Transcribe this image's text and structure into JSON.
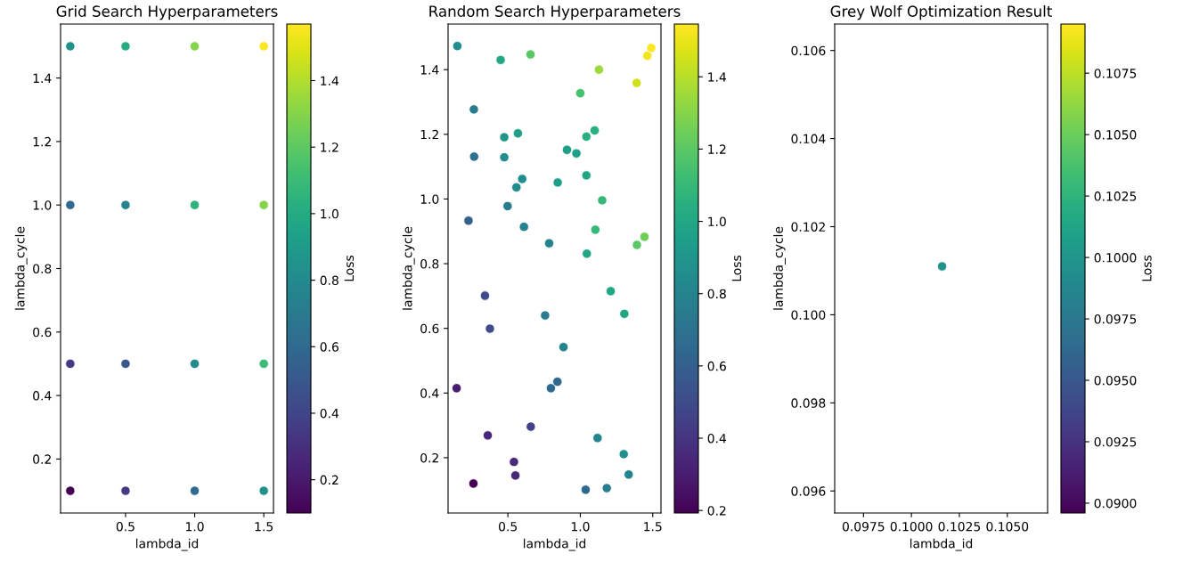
{
  "chart_data": [
    {
      "type": "scatter",
      "title": "Grid Search Hyperparameters",
      "xlabel": "lambda_id",
      "ylabel": "lambda_cycle",
      "clabel": "Loss",
      "x": [
        0.1,
        0.5,
        1.0,
        1.5,
        0.1,
        0.5,
        1.0,
        1.5,
        0.1,
        0.5,
        1.0,
        1.5,
        0.1,
        0.5,
        1.0,
        1.5
      ],
      "values": [
        1.5,
        1.5,
        1.5,
        1.5,
        1.0,
        1.0,
        1.0,
        1.0,
        0.5,
        0.5,
        0.5,
        0.5,
        0.1,
        0.1,
        0.1,
        0.1
      ],
      "cvalues": [
        0.85,
        1.0,
        1.3,
        1.57,
        0.6,
        0.75,
        1.05,
        1.3,
        0.35,
        0.5,
        0.8,
        1.1,
        0.1,
        0.35,
        0.6,
        0.85
      ],
      "xlim": [
        0.03,
        1.57
      ],
      "ylim": [
        0.03,
        1.57
      ],
      "xticks": [
        {
          "value": 0.5,
          "label": "0.5"
        },
        {
          "value": 1.0,
          "label": "1.0"
        },
        {
          "value": 1.5,
          "label": "1.5"
        }
      ],
      "yticks": [
        {
          "value": 0.2,
          "label": "0.2"
        },
        {
          "value": 0.4,
          "label": "0.4"
        },
        {
          "value": 0.6,
          "label": "0.6"
        },
        {
          "value": 0.8,
          "label": "0.8"
        },
        {
          "value": 1.0,
          "label": "1.0"
        },
        {
          "value": 1.2,
          "label": "1.2"
        },
        {
          "value": 1.4,
          "label": "1.4"
        }
      ],
      "clim": [
        0.1,
        1.57
      ],
      "cticks": [
        {
          "value": 0.2,
          "label": "0.2"
        },
        {
          "value": 0.4,
          "label": "0.4"
        },
        {
          "value": 0.6,
          "label": "0.6"
        },
        {
          "value": 0.8,
          "label": "0.8"
        },
        {
          "value": 1.0,
          "label": "1.0"
        },
        {
          "value": 1.2,
          "label": "1.2"
        },
        {
          "value": 1.4,
          "label": "1.4"
        }
      ],
      "marker": "circle",
      "grid": false,
      "legend": false
    },
    {
      "type": "scatter",
      "title": "Random Search Hyperparameters",
      "xlabel": "lambda_id",
      "ylabel": "lambda_cycle",
      "clabel": "Loss",
      "x": [
        0.151,
        0.45,
        0.656,
        1.129,
        1.389,
        1.463,
        1.49,
        1.0,
        0.265,
        0.475,
        0.569,
        1.099,
        1.042,
        0.267,
        0.475,
        0.908,
        0.973,
        0.599,
        0.559,
        0.844,
        1.042,
        1.151,
        0.498,
        0.228,
        0.611,
        1.104,
        0.785,
        1.391,
        1.443,
        1.045,
        0.342,
        1.21,
        1.304,
        0.376,
        0.757,
        0.884,
        0.146,
        0.797,
        0.842,
        0.658,
        0.361,
        1.119,
        1.3,
        0.542,
        0.552,
        1.334,
        0.262,
        1.037,
        1.183
      ],
      "values": [
        1.473,
        1.43,
        1.447,
        1.4,
        1.359,
        1.443,
        1.467,
        1.327,
        1.277,
        1.191,
        1.203,
        1.212,
        1.193,
        1.131,
        1.129,
        1.152,
        1.141,
        1.062,
        1.036,
        1.051,
        1.073,
        0.996,
        0.978,
        0.933,
        0.914,
        0.905,
        0.863,
        0.858,
        0.883,
        0.831,
        0.701,
        0.715,
        0.645,
        0.599,
        0.64,
        0.542,
        0.415,
        0.415,
        0.435,
        0.296,
        0.269,
        0.261,
        0.211,
        0.187,
        0.145,
        0.148,
        0.12,
        0.101,
        0.106
      ],
      "cvalues": [
        0.85,
        1.0,
        1.2,
        1.35,
        1.45,
        1.52,
        1.546,
        1.15,
        0.75,
        0.9,
        0.95,
        1.05,
        1.05,
        0.7,
        0.85,
        0.95,
        0.95,
        0.85,
        0.85,
        0.95,
        1.0,
        1.1,
        0.75,
        0.6,
        0.8,
        1.1,
        0.8,
        1.2,
        1.25,
        1.0,
        0.5,
        1.0,
        1.0,
        0.5,
        0.75,
        0.8,
        0.3,
        0.65,
        0.65,
        0.45,
        0.35,
        0.8,
        0.85,
        0.35,
        0.35,
        0.8,
        0.193,
        0.65,
        0.75
      ],
      "xlim": [
        0.087,
        1.557
      ],
      "ylim": [
        0.029,
        1.541
      ],
      "xticks": [
        {
          "value": 0.5,
          "label": "0.5"
        },
        {
          "value": 1.0,
          "label": "1.0"
        },
        {
          "value": 1.5,
          "label": "1.5"
        }
      ],
      "yticks": [
        {
          "value": 0.2,
          "label": "0.2"
        },
        {
          "value": 0.4,
          "label": "0.4"
        },
        {
          "value": 0.6,
          "label": "0.6"
        },
        {
          "value": 0.8,
          "label": "0.8"
        },
        {
          "value": 1.0,
          "label": "1.0"
        },
        {
          "value": 1.2,
          "label": "1.2"
        },
        {
          "value": 1.4,
          "label": "1.4"
        }
      ],
      "clim": [
        0.193,
        1.546
      ],
      "cticks": [
        {
          "value": 0.2,
          "label": "0.2"
        },
        {
          "value": 0.4,
          "label": "0.4"
        },
        {
          "value": 0.6,
          "label": "0.6"
        },
        {
          "value": 0.8,
          "label": "0.8"
        },
        {
          "value": 1.0,
          "label": "1.0"
        },
        {
          "value": 1.2,
          "label": "1.2"
        },
        {
          "value": 1.4,
          "label": "1.4"
        }
      ],
      "marker": "circle",
      "grid": false,
      "legend": false
    },
    {
      "type": "scatter",
      "title": "Grey Wolf Optimization Result",
      "xlabel": "lambda_id",
      "ylabel": "lambda_cycle",
      "clabel": "Loss",
      "x": [
        0.1016
      ],
      "values": [
        0.1011
      ],
      "cvalues": [
        0.0996
      ],
      "xlim": [
        0.096,
        0.1071
      ],
      "ylim": [
        0.0955,
        0.1066
      ],
      "xticks": [
        {
          "value": 0.0975,
          "label": "0.0975"
        },
        {
          "value": 0.1,
          "label": "0.1000"
        },
        {
          "value": 0.1025,
          "label": "0.1025"
        },
        {
          "value": 0.105,
          "label": "0.1050"
        }
      ],
      "yticks": [
        {
          "value": 0.096,
          "label": "0.096"
        },
        {
          "value": 0.098,
          "label": "0.098"
        },
        {
          "value": 0.1,
          "label": "0.100"
        },
        {
          "value": 0.102,
          "label": "0.102"
        },
        {
          "value": 0.104,
          "label": "0.104"
        },
        {
          "value": 0.106,
          "label": "0.106"
        }
      ],
      "clim": [
        0.0896,
        0.1095
      ],
      "cticks": [
        {
          "value": 0.09,
          "label": "0.0900"
        },
        {
          "value": 0.0925,
          "label": "0.0925"
        },
        {
          "value": 0.095,
          "label": "0.0950"
        },
        {
          "value": 0.0975,
          "label": "0.0975"
        },
        {
          "value": 0.1,
          "label": "0.1000"
        },
        {
          "value": 0.1025,
          "label": "0.1025"
        },
        {
          "value": 0.105,
          "label": "0.1050"
        },
        {
          "value": 0.1075,
          "label": "0.1075"
        }
      ],
      "marker": "circle",
      "grid": false,
      "legend": false
    }
  ]
}
